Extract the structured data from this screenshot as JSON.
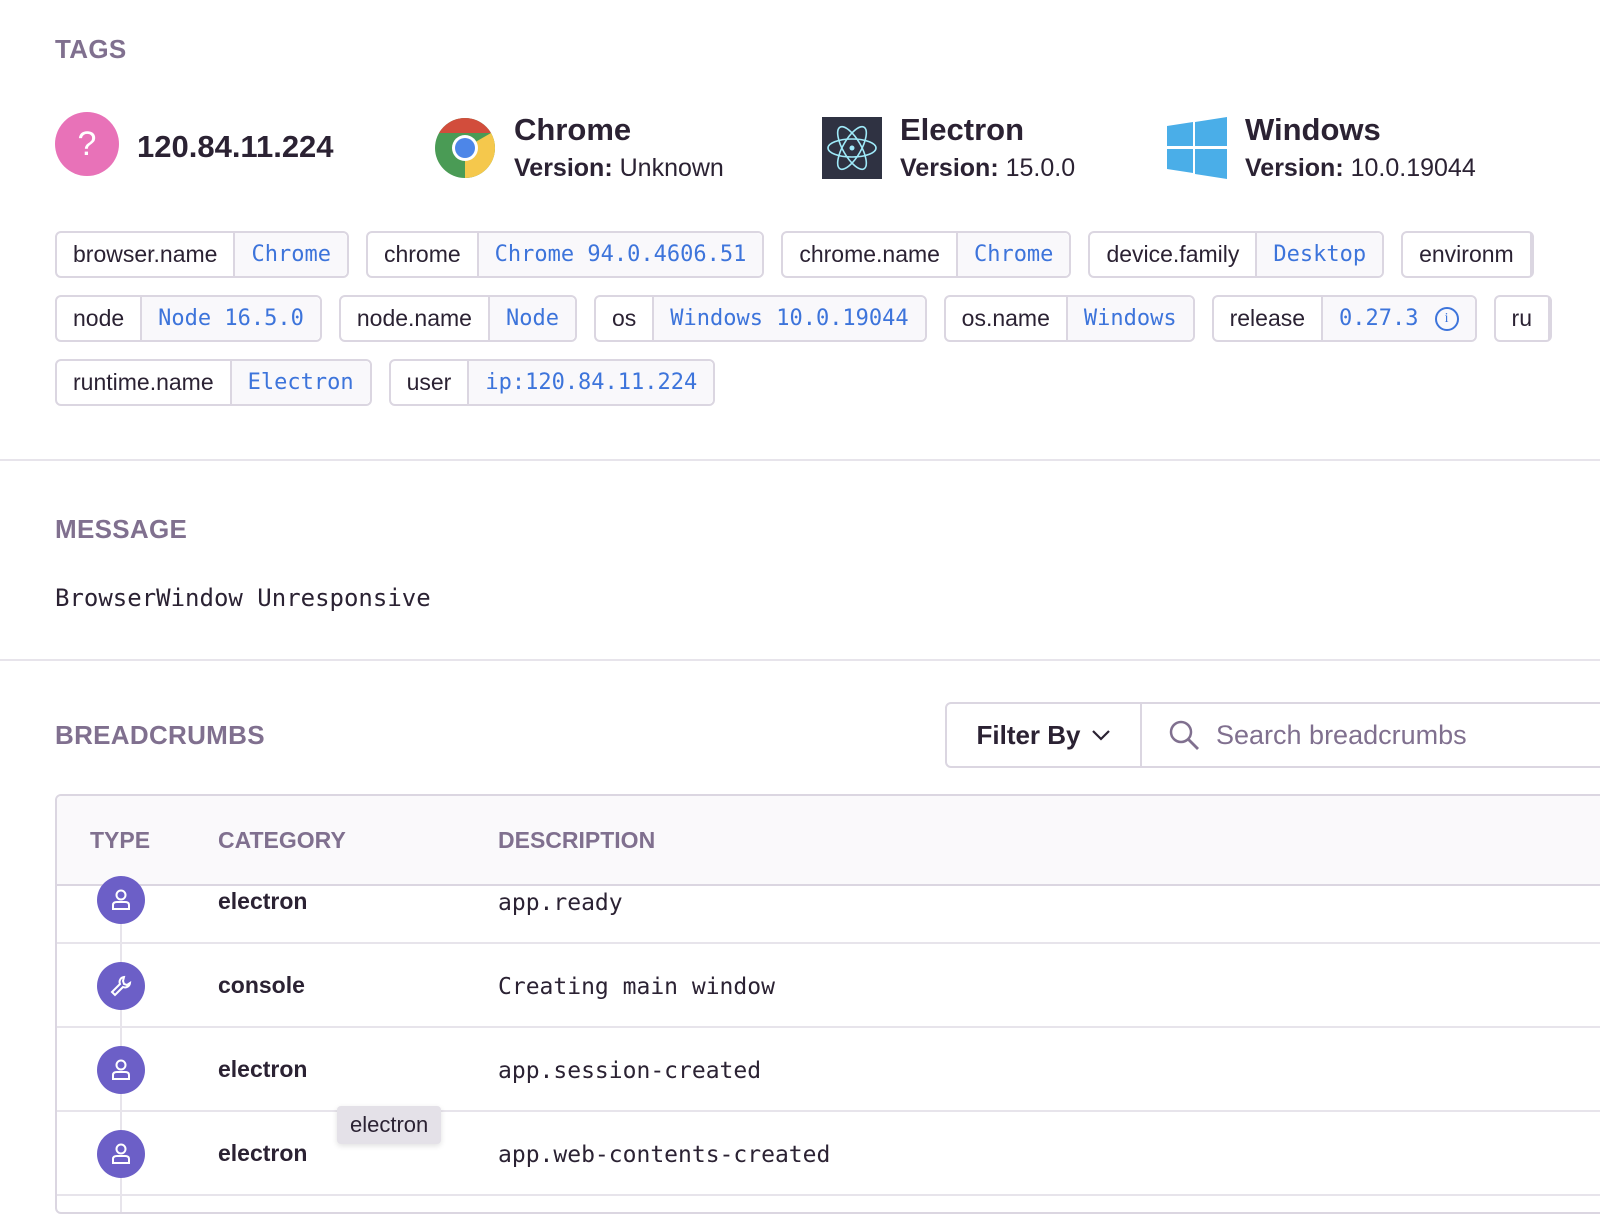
{
  "tags_heading": "TAGS",
  "context": [
    {
      "title": "120.84.11.224",
      "icon": "unknown-user-icon"
    },
    {
      "title": "Chrome",
      "version_label": "Version:",
      "version": "Unknown",
      "icon": "chrome-icon"
    },
    {
      "title": "Electron",
      "version_label": "Version:",
      "version": "15.0.0",
      "icon": "electron-icon"
    },
    {
      "title": "Windows",
      "version_label": "Version:",
      "version": "10.0.19044",
      "icon": "windows-icon"
    }
  ],
  "tags": [
    [
      {
        "key": "browser.name",
        "value": "Chrome"
      },
      {
        "key": "chrome",
        "value": "Chrome 94.0.4606.51"
      },
      {
        "key": "chrome.name",
        "value": "Chrome"
      },
      {
        "key": "device.family",
        "value": "Desktop"
      },
      {
        "key": "environm",
        "value": ""
      }
    ],
    [
      {
        "key": "node",
        "value": "Node 16.5.0"
      },
      {
        "key": "node.name",
        "value": "Node"
      },
      {
        "key": "os",
        "value": "Windows 10.0.19044"
      },
      {
        "key": "os.name",
        "value": "Windows"
      },
      {
        "key": "release",
        "value": "0.27.3"
      },
      {
        "key": "ru",
        "value": ""
      }
    ],
    [
      {
        "key": "runtime.name",
        "value": "Electron"
      },
      {
        "key": "user",
        "value": "ip:120.84.11.224"
      }
    ]
  ],
  "message_heading": "MESSAGE",
  "message": "BrowserWindow Unresponsive",
  "breadcrumbs": {
    "heading": "BREADCRUMBS",
    "filter_label": "Filter By",
    "search_placeholder": "Search breadcrumbs",
    "columns": [
      "TYPE",
      "CATEGORY",
      "DESCRIPTION"
    ],
    "rows": [
      {
        "icon": "user-icon",
        "category": "electron",
        "description": "app.ready"
      },
      {
        "icon": "wrench-icon",
        "category": "console",
        "description": "Creating main window"
      },
      {
        "icon": "user-icon",
        "category": "electron",
        "description": "app.session-created"
      },
      {
        "icon": "user-icon",
        "category": "electron",
        "description": "app.web-contents-created"
      }
    ],
    "tooltip": "electron"
  },
  "colors": {
    "accent": "#6c5fc7",
    "link": "#3d74db",
    "heading": "#80708f"
  }
}
